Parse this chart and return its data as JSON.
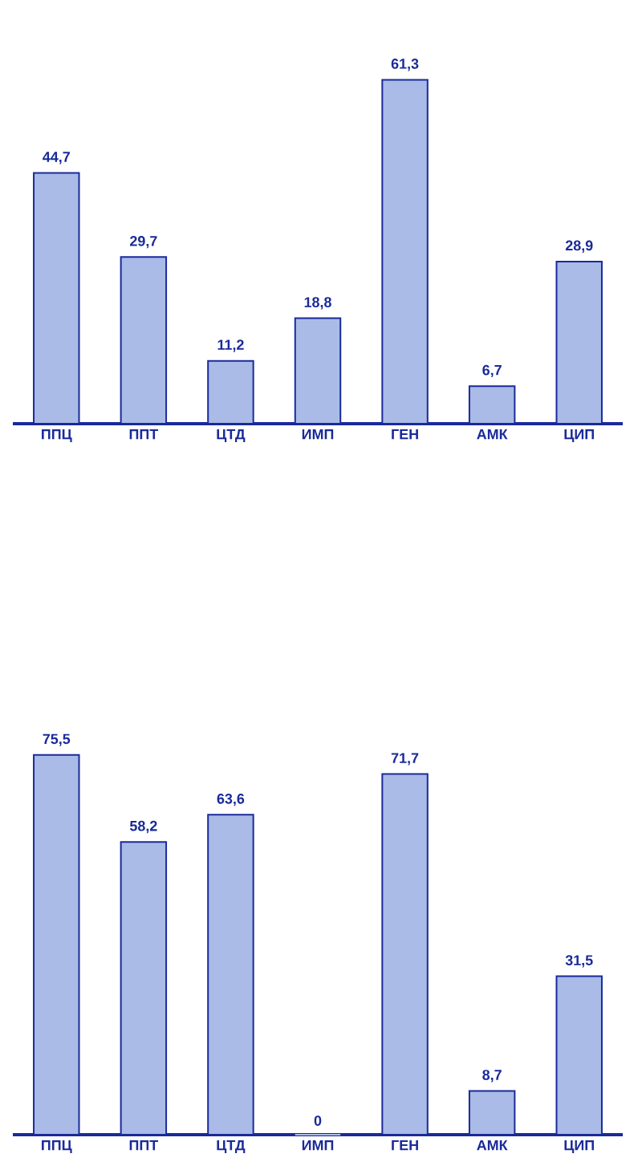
{
  "chart_data": [
    {
      "type": "bar",
      "categories": [
        "ППЦ",
        "ППТ",
        "ЦТД",
        "ИМП",
        "ГЕН",
        "АМК",
        "ЦИП"
      ],
      "values": [
        44.7,
        29.7,
        11.2,
        18.8,
        61.3,
        6.7,
        28.9
      ],
      "value_labels": [
        "44,7",
        "29,7",
        "11,2",
        "18,8",
        "61,3",
        "6,7",
        "28,9"
      ],
      "color": "#a9bbe6"
    },
    {
      "type": "bar",
      "categories": [
        "ППЦ",
        "ППТ",
        "ЦТД",
        "ИМП",
        "ГЕН",
        "АМК",
        "ЦИП"
      ],
      "values": [
        75.5,
        58.2,
        63.6,
        0,
        71.7,
        8.7,
        31.5
      ],
      "value_labels": [
        "75,5",
        "58,2",
        "63,6",
        "0",
        "71,7",
        "8,7",
        "31,5"
      ],
      "color": "#a9bbe6"
    }
  ]
}
